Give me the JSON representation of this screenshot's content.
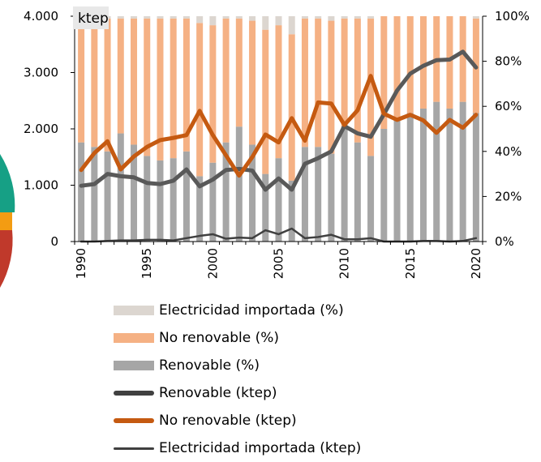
{
  "chart_data": {
    "type": "bar+line",
    "unit_label": "ktep",
    "x": [
      1990,
      1991,
      1992,
      1993,
      1994,
      1995,
      1996,
      1997,
      1998,
      1999,
      2000,
      2001,
      2002,
      2003,
      2004,
      2005,
      2006,
      2007,
      2008,
      2009,
      2010,
      2011,
      2012,
      2013,
      2014,
      2015,
      2016,
      2017,
      2018,
      2019,
      2020
    ],
    "x_tick_labels": [
      "1990",
      "1995",
      "2000",
      "2005",
      "2010",
      "2015",
      "2020"
    ],
    "x_tick_years": [
      1990,
      1995,
      2000,
      2005,
      2010,
      2015,
      2020
    ],
    "left_axis": {
      "range": [
        0,
        4000
      ],
      "tick_labels": [
        "0",
        "1.000",
        "2.000",
        "3.000",
        "4.000"
      ],
      "tick_values": [
        0,
        1000,
        2000,
        3000,
        4000
      ]
    },
    "right_axis": {
      "range": [
        0,
        100
      ],
      "tick_labels": [
        "0%",
        "20%",
        "40%",
        "60%",
        "80%",
        "100%"
      ],
      "tick_values": [
        0,
        20,
        40,
        60,
        80,
        100
      ]
    },
    "bar_series": [
      {
        "name": "Renovable (%)",
        "color": "#a6a6a6",
        "values": [
          44,
          42,
          40,
          48,
          43,
          38,
          36,
          37,
          40,
          29,
          35,
          44,
          51,
          43,
          30,
          37,
          27,
          42,
          42,
          39,
          51,
          44,
          38,
          50,
          54,
          57,
          59,
          62,
          59,
          62,
          57
        ]
      },
      {
        "name": "No renovable (%)",
        "color": "#f5b184",
        "values": [
          55,
          57,
          59,
          51,
          56,
          61,
          63,
          62,
          59,
          68,
          61,
          55,
          48,
          55,
          64,
          59,
          65,
          57,
          57,
          59,
          48,
          55,
          61,
          50,
          46,
          43,
          41,
          38,
          41,
          38,
          42
        ]
      },
      {
        "name": "Electricidad importada (%)",
        "color": "#dcd6d0",
        "values": [
          1,
          1,
          1,
          1,
          1,
          1,
          1,
          1,
          1,
          3,
          4,
          1,
          1,
          2,
          6,
          4,
          8,
          1,
          1,
          2,
          1,
          1,
          1,
          0,
          0,
          0,
          0,
          0,
          0,
          0,
          1
        ]
      }
    ],
    "line_series": [
      {
        "name": "Renovable (ktep)",
        "color": "#595959",
        "style": "thick",
        "values": [
          990,
          1020,
          1200,
          1160,
          1140,
          1040,
          1020,
          1080,
          1280,
          980,
          1100,
          1270,
          1290,
          1260,
          920,
          1120,
          920,
          1380,
          1480,
          1600,
          2050,
          1920,
          1860,
          2260,
          2680,
          2980,
          3120,
          3220,
          3230,
          3370,
          3090
        ]
      },
      {
        "name": "No renovable (ktep)",
        "color": "#c55a11",
        "style": "thick",
        "values": [
          1270,
          1570,
          1780,
          1280,
          1510,
          1680,
          1800,
          1840,
          1890,
          2320,
          1890,
          1530,
          1170,
          1500,
          1900,
          1760,
          2190,
          1790,
          2470,
          2450,
          2070,
          2330,
          2940,
          2270,
          2160,
          2250,
          2150,
          1930,
          2160,
          2020,
          2250
        ]
      },
      {
        "name": "Electricidad importada (ktep)",
        "color": "#404040",
        "style": "thin",
        "values": [
          0,
          0,
          10,
          20,
          20,
          30,
          30,
          20,
          60,
          100,
          130,
          50,
          70,
          60,
          200,
          130,
          230,
          60,
          80,
          120,
          40,
          40,
          60,
          0,
          0,
          0,
          10,
          10,
          0,
          10,
          60
        ]
      }
    ],
    "legend_position": "bottom",
    "grid": false
  },
  "legend_items": [
    {
      "label": "Electricidad importada (%)",
      "kind": "bar",
      "color": "#dcd6d0"
    },
    {
      "label": "No renovable (%)",
      "kind": "bar",
      "color": "#f5b184"
    },
    {
      "label": "Renovable (%)",
      "kind": "bar",
      "color": "#a6a6a6"
    },
    {
      "label": "Renovable (ktep)",
      "kind": "line-thick",
      "color": "#404040"
    },
    {
      "label": "No renovable (ktep)",
      "kind": "line-thick",
      "color": "#c55a11"
    },
    {
      "label": "Electricidad importada (ktep)",
      "kind": "line-thin",
      "color": "#404040"
    }
  ],
  "side_graphic_colors": [
    "#16a085",
    "#f39c12",
    "#c0392b"
  ]
}
